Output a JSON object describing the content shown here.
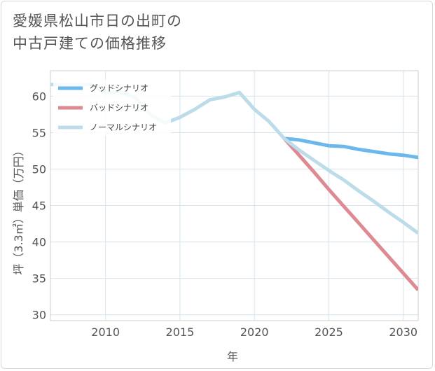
{
  "title_line1": "愛媛県松山市日の出町の",
  "title_line2": "中古戸建ての価格推移",
  "chart_data": {
    "type": "line",
    "title": "愛媛県松山市日の出町の中古戸建ての価格推移",
    "xlabel": "年",
    "ylabel": "坪（3.3㎡）単価（万円）",
    "xlim": [
      2006.3,
      2031
    ],
    "ylim": [
      29.2,
      63.5
    ],
    "xticks": [
      2010,
      2015,
      2020,
      2025,
      2030
    ],
    "yticks": [
      30,
      35,
      40,
      45,
      50,
      55,
      60
    ],
    "grid": true,
    "legend_position": "top-left",
    "series": [
      {
        "name": "グッドシナリオ",
        "color": "#6cb8ea",
        "x": [
          2022,
          2023,
          2024,
          2025,
          2026,
          2027,
          2028,
          2029,
          2030,
          2031
        ],
        "y": [
          54.2,
          54.0,
          53.6,
          53.2,
          53.1,
          52.7,
          52.4,
          52.1,
          51.9,
          51.6
        ]
      },
      {
        "name": "バッドシナリオ",
        "color": "#de8a93",
        "x": [
          2022,
          2023,
          2024,
          2025,
          2026,
          2027,
          2028,
          2029,
          2030,
          2031
        ],
        "y": [
          54.2,
          51.9,
          49.6,
          47.2,
          44.9,
          42.6,
          40.3,
          38.0,
          35.7,
          33.4
        ]
      },
      {
        "name": "ノーマルシナリオ",
        "color": "#bcdcea",
        "x": [
          2006.3,
          2009,
          2010,
          2011,
          2012,
          2013,
          2014,
          2015,
          2016,
          2017,
          2018,
          2019,
          2020,
          2021,
          2022,
          2023,
          2024,
          2025,
          2026,
          2027,
          2028,
          2029,
          2030,
          2031
        ],
        "y": [
          61.6,
          61.6,
          60.5,
          60.6,
          59.8,
          57.5,
          56.3,
          57.1,
          58.2,
          59.5,
          59.9,
          60.5,
          58.2,
          56.5,
          54.2,
          52.6,
          51.2,
          49.8,
          48.5,
          47.0,
          45.6,
          44.1,
          42.7,
          41.2
        ]
      }
    ]
  }
}
